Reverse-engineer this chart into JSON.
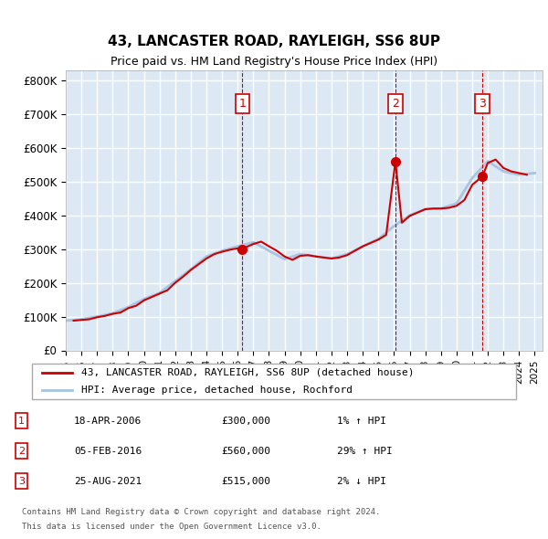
{
  "title": "43, LANCASTER ROAD, RAYLEIGH, SS6 8UP",
  "subtitle": "Price paid vs. HM Land Registry's House Price Index (HPI)",
  "ylabel_ticks": [
    "£0",
    "£100K",
    "£200K",
    "£300K",
    "£400K",
    "£500K",
    "£600K",
    "£700K",
    "£800K"
  ],
  "ytick_vals": [
    0,
    100000,
    200000,
    300000,
    400000,
    500000,
    600000,
    700000,
    800000
  ],
  "ylim": [
    0,
    830000
  ],
  "xlim_start": 1995.0,
  "xlim_end": 2025.5,
  "background_color": "#dce9f5",
  "plot_bg_color": "#dce9f5",
  "grid_color": "#ffffff",
  "hpi_line_color": "#a8c4e0",
  "price_line_color": "#cc0000",
  "marker_colors": {
    "sale": "#cc0000"
  },
  "transactions": [
    {
      "num": 1,
      "date": "18-APR-2006",
      "price": 300000,
      "year": 2006.29,
      "hpi_pct": "1%",
      "hpi_dir": "↑"
    },
    {
      "num": 2,
      "date": "05-FEB-2016",
      "price": 560000,
      "year": 2016.09,
      "hpi_pct": "29%",
      "hpi_dir": "↑"
    },
    {
      "num": 3,
      "date": "25-AUG-2021",
      "price": 515000,
      "year": 2021.65,
      "hpi_pct": "2%",
      "hpi_dir": "↓"
    }
  ],
  "legend_label_red": "43, LANCASTER ROAD, RAYLEIGH, SS6 8UP (detached house)",
  "legend_label_blue": "HPI: Average price, detached house, Rochford",
  "footer1": "Contains HM Land Registry data © Crown copyright and database right 2024.",
  "footer2": "This data is licensed under the Open Government Licence v3.0.",
  "hpi_data": {
    "years": [
      1995,
      1996,
      1997,
      1998,
      1999,
      2000,
      2001,
      2002,
      2003,
      2004,
      2005,
      2006,
      2007,
      2008,
      2009,
      2010,
      2011,
      2012,
      2013,
      2014,
      2015,
      2016,
      2017,
      2018,
      2019,
      2020,
      2021,
      2022,
      2023,
      2024,
      2025
    ],
    "values": [
      88000,
      92000,
      100000,
      110000,
      128000,
      152000,
      170000,
      205000,
      240000,
      278000,
      295000,
      308000,
      320000,
      295000,
      270000,
      285000,
      278000,
      272000,
      285000,
      308000,
      330000,
      368000,
      400000,
      418000,
      420000,
      435000,
      510000,
      560000,
      530000,
      520000,
      525000
    ]
  },
  "price_data": {
    "years": [
      1995.5,
      1996.0,
      1996.5,
      1997.0,
      1997.5,
      1998.0,
      1998.5,
      1999.0,
      1999.5,
      2000.0,
      2000.5,
      2001.0,
      2001.5,
      2002.0,
      2002.5,
      2003.0,
      2003.5,
      2004.0,
      2004.5,
      2005.0,
      2005.5,
      2006.0,
      2006.29,
      2006.5,
      2007.0,
      2007.5,
      2008.0,
      2008.5,
      2009.0,
      2009.5,
      2010.0,
      2010.5,
      2011.0,
      2011.5,
      2012.0,
      2012.5,
      2013.0,
      2013.5,
      2014.0,
      2014.5,
      2015.0,
      2015.5,
      2016.09,
      2016.5,
      2017.0,
      2017.5,
      2018.0,
      2018.5,
      2019.0,
      2019.5,
      2020.0,
      2020.5,
      2021.0,
      2021.65,
      2022.0,
      2022.5,
      2023.0,
      2023.5,
      2024.0,
      2024.5
    ],
    "values": [
      88000,
      90000,
      92000,
      98000,
      102000,
      108000,
      112000,
      125000,
      132000,
      148000,
      158000,
      168000,
      178000,
      200000,
      218000,
      238000,
      255000,
      272000,
      285000,
      292000,
      298000,
      302000,
      300000,
      305000,
      315000,
      322000,
      308000,
      295000,
      278000,
      268000,
      280000,
      282000,
      278000,
      275000,
      272000,
      275000,
      282000,
      295000,
      308000,
      318000,
      328000,
      342000,
      560000,
      378000,
      398000,
      408000,
      418000,
      420000,
      420000,
      422000,
      428000,
      445000,
      490000,
      515000,
      555000,
      565000,
      540000,
      530000,
      525000,
      520000
    ]
  }
}
